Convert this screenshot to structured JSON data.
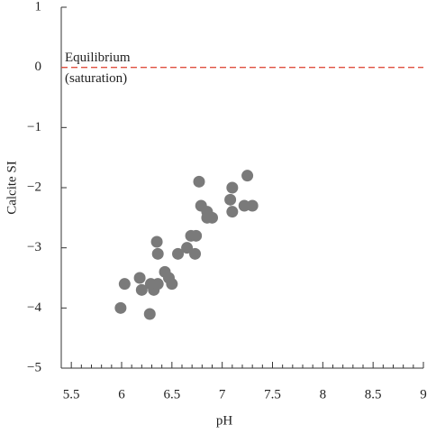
{
  "chart_data": {
    "type": "scatter",
    "xlabel": "pH",
    "ylabel": "Calcite SI",
    "series": [
      {
        "color": "#7a7a7a",
        "x": [
          5.99,
          6.03,
          6.18,
          6.2,
          6.28,
          6.29,
          6.32,
          6.36,
          6.35,
          6.36,
          6.43,
          6.47,
          6.5,
          6.56,
          6.65,
          6.69,
          6.74,
          6.73,
          6.77,
          6.79,
          6.85,
          6.85,
          6.9,
          7.08,
          7.1,
          7.1,
          7.22,
          7.25,
          7.3
        ],
        "values": [
          -4.0,
          -3.6,
          -3.5,
          -3.7,
          -4.1,
          -3.6,
          -3.7,
          -3.6,
          -2.9,
          -3.1,
          -3.4,
          -3.5,
          -3.6,
          -3.1,
          -3.0,
          -2.8,
          -2.8,
          -3.1,
          -1.9,
          -2.3,
          -2.4,
          -2.5,
          -2.5,
          -2.2,
          -2.0,
          -2.4,
          -2.3,
          -1.8,
          -2.3
        ]
      }
    ],
    "reference_line": {
      "value": 0,
      "color": "#e05040",
      "label": [
        "Equilibrium",
        "(saturation)"
      ]
    },
    "xlim": [
      5.4,
      9
    ],
    "xticks": [
      5.5,
      6,
      6.5,
      7,
      7.5,
      8,
      8.5,
      9
    ],
    "ylim": [
      -5,
      1
    ],
    "yticks": [
      {
        "value": -5,
        "label": "−5"
      },
      {
        "value": -4,
        "label": "−4"
      },
      {
        "value": -3,
        "label": "−3"
      },
      {
        "value": -2,
        "label": "−2"
      },
      {
        "value": -1,
        "label": "−1"
      },
      0,
      1
    ]
  }
}
